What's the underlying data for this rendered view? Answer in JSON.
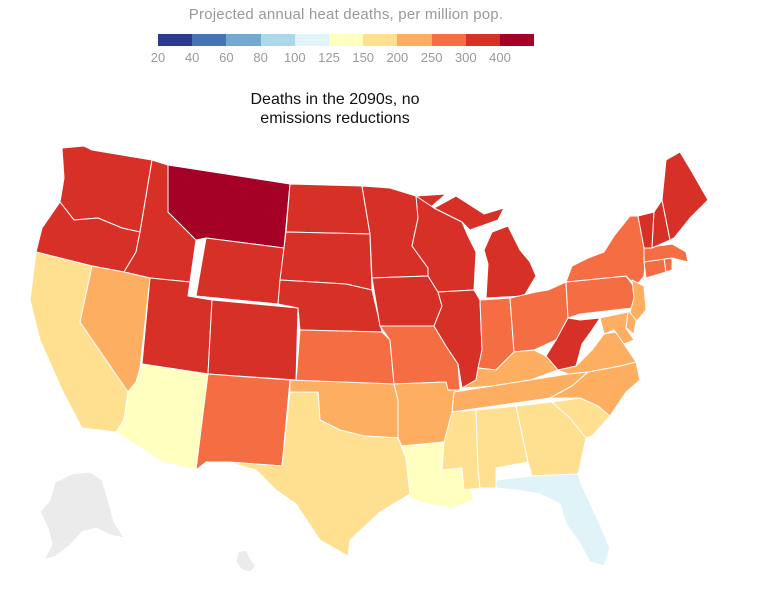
{
  "legend": {
    "title": "Projected annual heat deaths, per million pop.",
    "ticks": [
      "20",
      "40",
      "60",
      "80",
      "100",
      "125",
      "150",
      "200",
      "250",
      "300",
      "400"
    ],
    "colors": [
      "#2d3a8c",
      "#4575b4",
      "#74a9cf",
      "#abd9e9",
      "#e0f3f8",
      "#ffffbf",
      "#fee090",
      "#fdae61",
      "#f46d43",
      "#d73027",
      "#a50026"
    ]
  },
  "map": {
    "title_line1": "Deaths in the 2090s, no",
    "title_line2": "emissions reductions"
  },
  "states": [
    {
      "id": "WA",
      "color": "#d73027"
    },
    {
      "id": "OR",
      "color": "#d73027"
    },
    {
      "id": "CA",
      "color": "#fee090"
    },
    {
      "id": "ID",
      "color": "#d73027"
    },
    {
      "id": "NV",
      "color": "#fdae61"
    },
    {
      "id": "MT",
      "color": "#a50026"
    },
    {
      "id": "WY",
      "color": "#d73027"
    },
    {
      "id": "UT",
      "color": "#d73027"
    },
    {
      "id": "AZ",
      "color": "#ffffbf"
    },
    {
      "id": "CO",
      "color": "#d73027"
    },
    {
      "id": "NM",
      "color": "#f46d43"
    },
    {
      "id": "ND",
      "color": "#d73027"
    },
    {
      "id": "SD",
      "color": "#d73027"
    },
    {
      "id": "NE",
      "color": "#d73027"
    },
    {
      "id": "KS",
      "color": "#f46d43"
    },
    {
      "id": "OK",
      "color": "#fdae61"
    },
    {
      "id": "TX",
      "color": "#fee090"
    },
    {
      "id": "MN",
      "color": "#d73027"
    },
    {
      "id": "IA",
      "color": "#d73027"
    },
    {
      "id": "MO",
      "color": "#f46d43"
    },
    {
      "id": "AR",
      "color": "#fdae61"
    },
    {
      "id": "LA",
      "color": "#ffffbf"
    },
    {
      "id": "WI",
      "color": "#d73027"
    },
    {
      "id": "IL",
      "color": "#d73027"
    },
    {
      "id": "MI",
      "color": "#d73027"
    },
    {
      "id": "IN",
      "color": "#f46d43"
    },
    {
      "id": "OH",
      "color": "#f46d43"
    },
    {
      "id": "KY",
      "color": "#fdae61"
    },
    {
      "id": "TN",
      "color": "#fdae61"
    },
    {
      "id": "MS",
      "color": "#fee090"
    },
    {
      "id": "AL",
      "color": "#fee090"
    },
    {
      "id": "GA",
      "color": "#fee090"
    },
    {
      "id": "FL",
      "color": "#e0f3f8"
    },
    {
      "id": "SC",
      "color": "#fee090"
    },
    {
      "id": "NC",
      "color": "#fdae61"
    },
    {
      "id": "VA",
      "color": "#fdae61"
    },
    {
      "id": "WV",
      "color": "#d73027"
    },
    {
      "id": "PA",
      "color": "#f46d43"
    },
    {
      "id": "NY",
      "color": "#f46d43"
    },
    {
      "id": "NJ",
      "color": "#fdae61"
    },
    {
      "id": "DE",
      "color": "#fdae61"
    },
    {
      "id": "MD",
      "color": "#fdae61"
    },
    {
      "id": "CT",
      "color": "#f46d43"
    },
    {
      "id": "RI",
      "color": "#f46d43"
    },
    {
      "id": "MA",
      "color": "#f46d43"
    },
    {
      "id": "VT",
      "color": "#d73027"
    },
    {
      "id": "NH",
      "color": "#d73027"
    },
    {
      "id": "ME",
      "color": "#d73027"
    }
  ],
  "no_data_regions": [
    "AK",
    "HI"
  ]
}
